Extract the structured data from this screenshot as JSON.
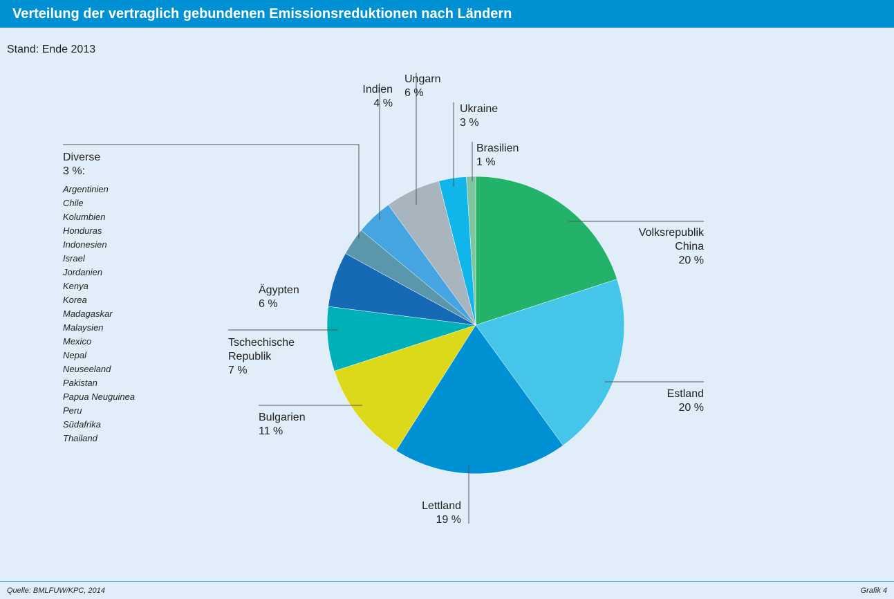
{
  "chart_data": {
    "type": "pie",
    "title": "Verteilung der vertraglich gebundenen Emissionsreduktionen nach Ländern",
    "subtitle": "Stand: Ende 2013",
    "categories": [
      "Volksrepublik China",
      "Estland",
      "Lettland",
      "Bulgarien",
      "Tschechische Republik",
      "Ägypten",
      "Diverse",
      "Indien",
      "Ungarn",
      "Ukraine",
      "Brasilien"
    ],
    "values": [
      20,
      20,
      19,
      11,
      7,
      6,
      3,
      4,
      6,
      3,
      1
    ],
    "value_labels": [
      "20 %",
      "20 %",
      "19 %",
      "11 %",
      "7 %",
      "6 %",
      "3 %:",
      "4 %",
      "6 %",
      "3 %",
      "1 %"
    ],
    "colors": [
      "#22b26a",
      "#45c5ea",
      "#0090d4",
      "#dcd81a",
      "#00b0b8",
      "#1569b5",
      "#5a97ad",
      "#45a5e0",
      "#a9b5be",
      "#10b5ea",
      "#7fc6a0"
    ],
    "annotations": [
      "Argentinien",
      "Chile",
      "Kolumbien",
      "Honduras",
      "Indonesien",
      "Israel",
      "Jordanien",
      "Kenya",
      "Korea",
      "Madagaskar",
      "Malaysien",
      "Mexico",
      "Nepal",
      "Neuseeland",
      "Pakistan",
      "Papua Neuguinea",
      "Peru",
      "Südafrika",
      "Thailand"
    ],
    "source": "Quelle: BMLFUW/KPC, 2014",
    "figure_label": "Grafik 4"
  }
}
